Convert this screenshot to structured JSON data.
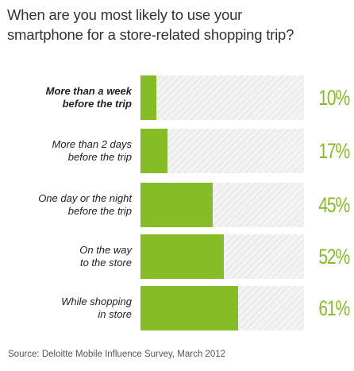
{
  "chart_data": {
    "type": "bar",
    "orientation": "horizontal",
    "title_lines": [
      "When are you most likely to use your",
      "smartphone for a store-related shopping trip?"
    ],
    "categories": [
      [
        "More than a week",
        "before the trip"
      ],
      [
        "More than 2 days",
        "before the trip"
      ],
      [
        "One day or the night",
        "before the trip"
      ],
      [
        "On the way",
        "to the store"
      ],
      [
        "While shopping",
        "in store"
      ]
    ],
    "values": [
      10,
      17,
      45,
      52,
      61
    ],
    "value_labels": [
      "10%",
      "17%",
      "45%",
      "52%",
      "61%"
    ],
    "bold_category_index": 0,
    "xlim": [
      0,
      100
    ],
    "grid": false,
    "legend": "none",
    "source": "Source: Deloitte Mobile Influence Survey, March 2012"
  },
  "colors": {
    "bar": "#86bc25",
    "value_text": "#86bc25",
    "track": "#f3f3f3",
    "track_stripe": "#e6e6e6",
    "title_text": "#333333"
  }
}
